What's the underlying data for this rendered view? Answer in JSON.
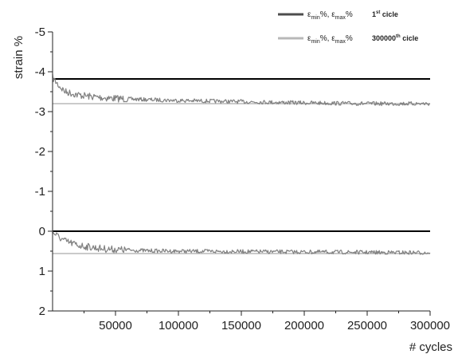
{
  "chart_data": {
    "type": "line",
    "xlabel": "# cycles",
    "ylabel": "strain %",
    "xlim": [
      0,
      300000
    ],
    "ylim": [
      -5,
      2
    ],
    "y_inverted": true,
    "grid": false,
    "legend_position": "top-right",
    "x_ticks": [
      50000,
      100000,
      150000,
      200000,
      250000,
      300000
    ],
    "x_tick_labels": [
      "50000",
      "100000",
      "150000",
      "200000",
      "250000",
      "300000"
    ],
    "y_ticks": [
      -5,
      -4,
      -3,
      -2,
      -1,
      0,
      1,
      2
    ],
    "y_tick_labels": [
      "-5",
      "-4",
      "-3",
      "-2",
      "-1",
      "0",
      "1",
      "2"
    ],
    "legend": [
      {
        "symbol": "ε",
        "sub_min": "min",
        "mid": "%, ε",
        "sub_max": "max",
        "end": "%",
        "note_num": "1",
        "note_sup": "st",
        "note_end": " cicle",
        "color": "#4d4d4d"
      },
      {
        "symbol": "ε",
        "sub_min": "min",
        "mid": "%, ε",
        "sub_max": "max",
        "end": "%",
        "note_num": "300000",
        "note_sup": "th",
        "note_end": " cicle",
        "color": "#b8b8b8"
      }
    ],
    "reference_lines": [
      {
        "series": "1st cicle",
        "y": -3.82,
        "color": "#000000"
      },
      {
        "series": "1st cicle",
        "y": 0.0,
        "color": "#000000"
      },
      {
        "series": "300000th cicle",
        "y": -3.2,
        "color": "#b8b8b8"
      },
      {
        "series": "300000th cicle",
        "y": 0.56,
        "color": "#b8b8b8"
      }
    ],
    "series": [
      {
        "color": "#808080",
        "x": [
          0,
          5000,
          10000,
          20000,
          30000,
          40000,
          50000,
          75000,
          100000,
          150000,
          200000,
          250000,
          300000
        ],
        "values": [
          -3.85,
          -3.65,
          -3.5,
          -3.42,
          -3.38,
          -3.35,
          -3.33,
          -3.3,
          -3.28,
          -3.25,
          -3.22,
          -3.2,
          -3.2
        ]
      },
      {
        "color": "#808080",
        "x": [
          0,
          5000,
          10000,
          20000,
          30000,
          40000,
          50000,
          75000,
          100000,
          150000,
          200000,
          250000,
          300000
        ],
        "values": [
          0.02,
          0.15,
          0.25,
          0.35,
          0.4,
          0.44,
          0.46,
          0.49,
          0.5,
          0.51,
          0.52,
          0.53,
          0.54
        ]
      }
    ]
  }
}
